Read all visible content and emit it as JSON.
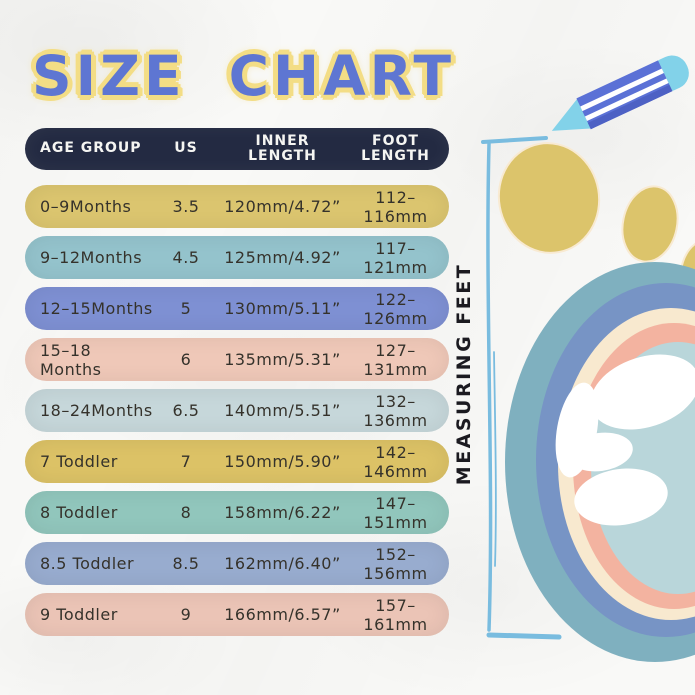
{
  "title": "SIZE CHART",
  "side_label": "MEASURING FEET",
  "table": {
    "headers": [
      "AGE GROUP",
      "US",
      "INNER\nLENGTH",
      "FOOT\nLENGTH"
    ],
    "rows": [
      {
        "age_group": "0–9Months",
        "us": "3.5",
        "inner_length": "120mm/4.72”",
        "foot_length": "112–116mm",
        "color": "#dbc56f"
      },
      {
        "age_group": "9–12Months",
        "us": "4.5",
        "inner_length": "125mm/4.92”",
        "foot_length": "117–121mm",
        "color": "#94c3cc"
      },
      {
        "age_group": "12–15Months",
        "us": "5",
        "inner_length": "130mm/5.11”",
        "foot_length": "122–126mm",
        "color": "#7e90d3"
      },
      {
        "age_group": "15–18 Months",
        "us": "6",
        "inner_length": "135mm/5.31”",
        "foot_length": "127–131mm",
        "color": "#efc8b8"
      },
      {
        "age_group": "18–24Months",
        "us": "6.5",
        "inner_length": "140mm/5.51”",
        "foot_length": "132–136mm",
        "color": "#c6d7da"
      },
      {
        "age_group": "7 Toddler",
        "us": "7",
        "inner_length": "150mm/5.90”",
        "foot_length": "142–146mm",
        "color": "#dcc266"
      },
      {
        "age_group": "8 Toddler",
        "us": "8",
        "inner_length": "158mm/6.22”",
        "foot_length": "147–151mm",
        "color": "#91c6bc"
      },
      {
        "age_group": "8.5 Toddler",
        "us": "8.5",
        "inner_length": "162mm/6.40”",
        "foot_length": "152–156mm",
        "color": "#98accf"
      },
      {
        "age_group": "9 Toddler",
        "us": "9",
        "inner_length": "166mm/6.57”",
        "foot_length": "157–161mm",
        "color": "#ebc4b6"
      }
    ]
  },
  "chart_data": {
    "type": "table",
    "title": "SIZE CHART",
    "columns": [
      "AGE GROUP",
      "US",
      "INNER LENGTH",
      "FOOT LENGTH"
    ],
    "rows": [
      [
        "0–9Months",
        "3.5",
        "120mm/4.72”",
        "112–116mm"
      ],
      [
        "9–12Months",
        "4.5",
        "125mm/4.92”",
        "117–121mm"
      ],
      [
        "12–15Months",
        "5",
        "130mm/5.11”",
        "122–126mm"
      ],
      [
        "15–18 Months",
        "6",
        "135mm/5.31”",
        "127–131mm"
      ],
      [
        "18–24Months",
        "6.5",
        "140mm/5.51”",
        "132–136mm"
      ],
      [
        "7 Toddler",
        "7",
        "150mm/5.90”",
        "142–146mm"
      ],
      [
        "8 Toddler",
        "8",
        "158mm/6.22”",
        "147–151mm"
      ],
      [
        "8.5 Toddler",
        "8.5",
        "162mm/6.40”",
        "152–156mm"
      ],
      [
        "9 Toddler",
        "9",
        "166mm/6.57”",
        "157–161mm"
      ]
    ],
    "annotation": "MEASURING FEET"
  },
  "colors": {
    "header_bg": "#232a42",
    "header_text": "#f5f5f2",
    "row_text": "#35322b",
    "title_text": "#5e76d2",
    "title_glow": "#f3dd85",
    "label_text": "#1b1a20",
    "bracket": "#79bcdf",
    "pencil_body": "#5b71d6",
    "pencil_shade": "#4d61c4",
    "pencil_light": "#82d2e9",
    "pencil_stripe": "#ffffff",
    "toe_yellow": "#dcc46b",
    "toe_edge": "#f8ead2",
    "foot_outer": "#7fb0bf",
    "foot_ring2": "#7794c5",
    "foot_ring3": "#f8e9cf",
    "foot_ring4": "#f3b3a0",
    "foot_inner": "#b9d6da",
    "blob_white": "#ffffff"
  }
}
